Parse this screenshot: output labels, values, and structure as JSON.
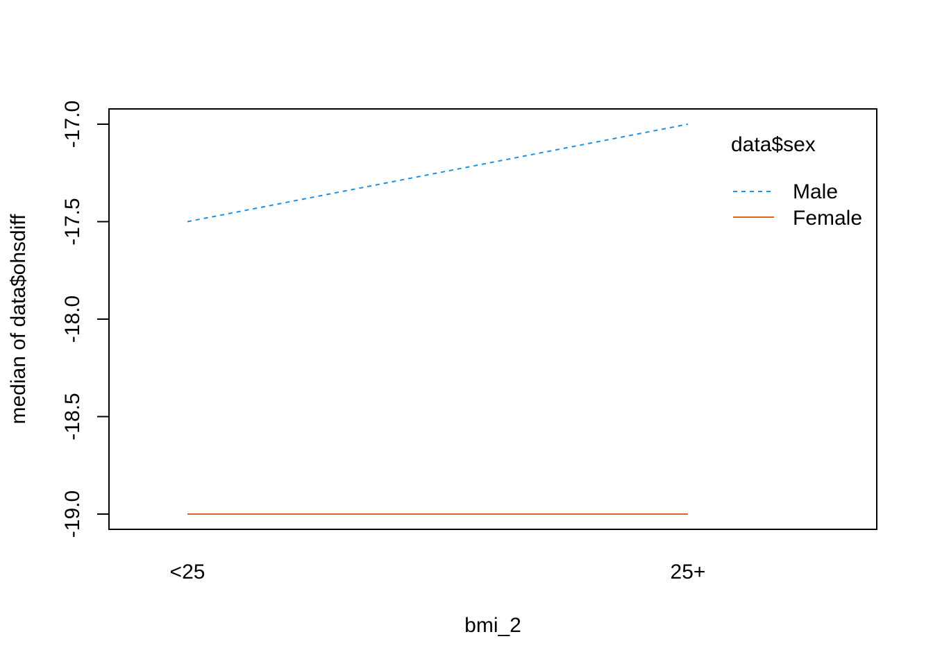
{
  "chart_data": {
    "type": "line",
    "title": "",
    "xlabel": "bmi_2",
    "ylabel": "median of  data$ohsdiff",
    "categories": [
      "<25",
      "25+"
    ],
    "ylim": [
      -19.0,
      -17.0
    ],
    "yticks": [
      "-17.0",
      "-17.5",
      "-18.0",
      "-18.5",
      "-19.0"
    ],
    "grid": false,
    "legend": {
      "title": "data$sex",
      "position": "top-right",
      "entries": [
        "Male",
        "Female"
      ]
    },
    "series": [
      {
        "name": "Male",
        "values": [
          -17.5,
          -17.0
        ],
        "color": "#1f8fe0",
        "linestyle": "dashed"
      },
      {
        "name": "Female",
        "values": [
          -19.0,
          -19.0
        ],
        "color": "#e0641f",
        "linestyle": "solid"
      }
    ]
  }
}
